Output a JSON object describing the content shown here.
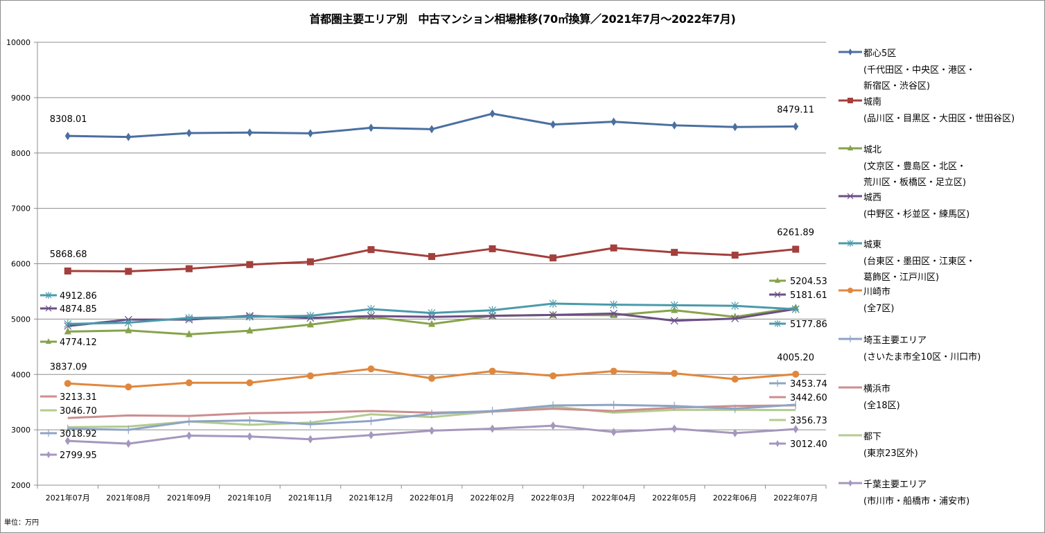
{
  "chart_data": {
    "type": "line",
    "title": "首都圏主要エリア別　中古マンション相場推移(70㎡換算／2021年7月～2022年7月)",
    "xlabel": "",
    "ylabel": "",
    "unit_note": "単位：万円",
    "ylim": [
      2000,
      10000
    ],
    "yticks": [
      2000,
      3000,
      4000,
      5000,
      6000,
      7000,
      8000,
      9000,
      10000
    ],
    "grid": true,
    "legend_position": "right",
    "categories": [
      "2021年07月",
      "2021年08月",
      "2021年09月",
      "2021年10月",
      "2021年11月",
      "2021年12月",
      "2022年01月",
      "2022年02月",
      "2022年03月",
      "2022年04月",
      "2022年05月",
      "2022年06月",
      "2022年07月"
    ],
    "series": [
      {
        "name": "都心5区",
        "sub": [
          "(千代田区・中央区・港区・",
          "新宿区・渋谷区)"
        ],
        "color": "#4a6fa0",
        "marker": "diamond",
        "values": [
          8308.01,
          8290,
          8360,
          8370,
          8355,
          8455,
          8430,
          8710,
          8515,
          8565,
          8500,
          8470,
          8479.11
        ],
        "start_label": "8308.01",
        "end_label": "8479.11"
      },
      {
        "name": "城南",
        "sub": [
          "(品川区・目黒区・大田区・世田谷区)"
        ],
        "color": "#a33f3c",
        "marker": "square",
        "values": [
          5868.68,
          5862,
          5910,
          5985,
          6035,
          6255,
          6130,
          6270,
          6105,
          6285,
          6205,
          6155,
          6261.89
        ],
        "start_label": "5868.68",
        "end_label": "6261.89"
      },
      {
        "name": "城北",
        "sub": [
          "(文京区・豊島区・北区・",
          "荒川区・板橋区・足立区)"
        ],
        "color": "#86a34a",
        "marker": "triangle",
        "values": [
          4774.12,
          4795,
          4725,
          4790,
          4900,
          5040,
          4910,
          5060,
          5075,
          5070,
          5160,
          5040,
          5204.53
        ],
        "start_label": "4774.12",
        "end_label": "5204.53"
      },
      {
        "name": "城西",
        "sub": [
          "(中野区・杉並区・練馬区)"
        ],
        "color": "#6b4e86",
        "marker": "x",
        "values": [
          4874.85,
          4990,
          4990,
          5060,
          5020,
          5055,
          5040,
          5060,
          5075,
          5100,
          4970,
          5010,
          5181.61
        ],
        "start_label": "4874.85",
        "end_label": "5181.61"
      },
      {
        "name": "城東",
        "sub": [
          "(台東区・墨田区・江東区・",
          "葛飾区・江戸川区)"
        ],
        "color": "#4a9aab",
        "marker": "star",
        "values": [
          4912.86,
          4935,
          5020,
          5040,
          5060,
          5180,
          5110,
          5160,
          5280,
          5260,
          5250,
          5240,
          5177.86
        ],
        "start_label": "4912.86",
        "end_label": "5177.86"
      },
      {
        "name": "川崎市",
        "sub": [
          "(全7区)"
        ],
        "color": "#e0873d",
        "marker": "circle",
        "values": [
          3837.09,
          3775,
          3850,
          3850,
          3975,
          4100,
          3930,
          4060,
          3975,
          4060,
          4020,
          3915,
          4005.2
        ],
        "start_label": "3837.09",
        "end_label": "4005.20"
      },
      {
        "name": "埼玉主要エリア",
        "sub": [
          "(さいたま市全10区・川口市)"
        ],
        "color": "#8da4c6",
        "marker": "plus",
        "values": [
          3018.92,
          3000,
          3150,
          3170,
          3100,
          3160,
          3290,
          3340,
          3440,
          3450,
          3430,
          3380,
          3453.74
        ],
        "start_label": "3018.92",
        "end_label": "3453.74"
      },
      {
        "name": "横浜市",
        "sub": [
          "(全18区)"
        ],
        "color": "#cc8e8d",
        "marker": "none",
        "values": [
          3213.31,
          3260,
          3250,
          3300,
          3315,
          3340,
          3310,
          3330,
          3380,
          3340,
          3400,
          3430,
          3442.6
        ],
        "start_label": "3213.31",
        "end_label": "3442.60"
      },
      {
        "name": "都下",
        "sub": [
          "(東京23区外)"
        ],
        "color": "#b3cb8f",
        "marker": "none",
        "values": [
          3046.7,
          3060,
          3150,
          3090,
          3130,
          3280,
          3230,
          3330,
          3420,
          3310,
          3360,
          3360,
          3356.73
        ],
        "start_label": "3046.70",
        "end_label": "3356.73"
      },
      {
        "name": "千葉主要エリア",
        "sub": [
          "(市川市・船橋市・浦安市)"
        ],
        "color": "#a597bd",
        "marker": "diamond",
        "values": [
          2799.95,
          2750,
          2895,
          2880,
          2830,
          2905,
          2985,
          3020,
          3075,
          2960,
          3020,
          2940,
          3012.4
        ],
        "start_label": "2799.95",
        "end_label": "3012.40"
      }
    ]
  }
}
